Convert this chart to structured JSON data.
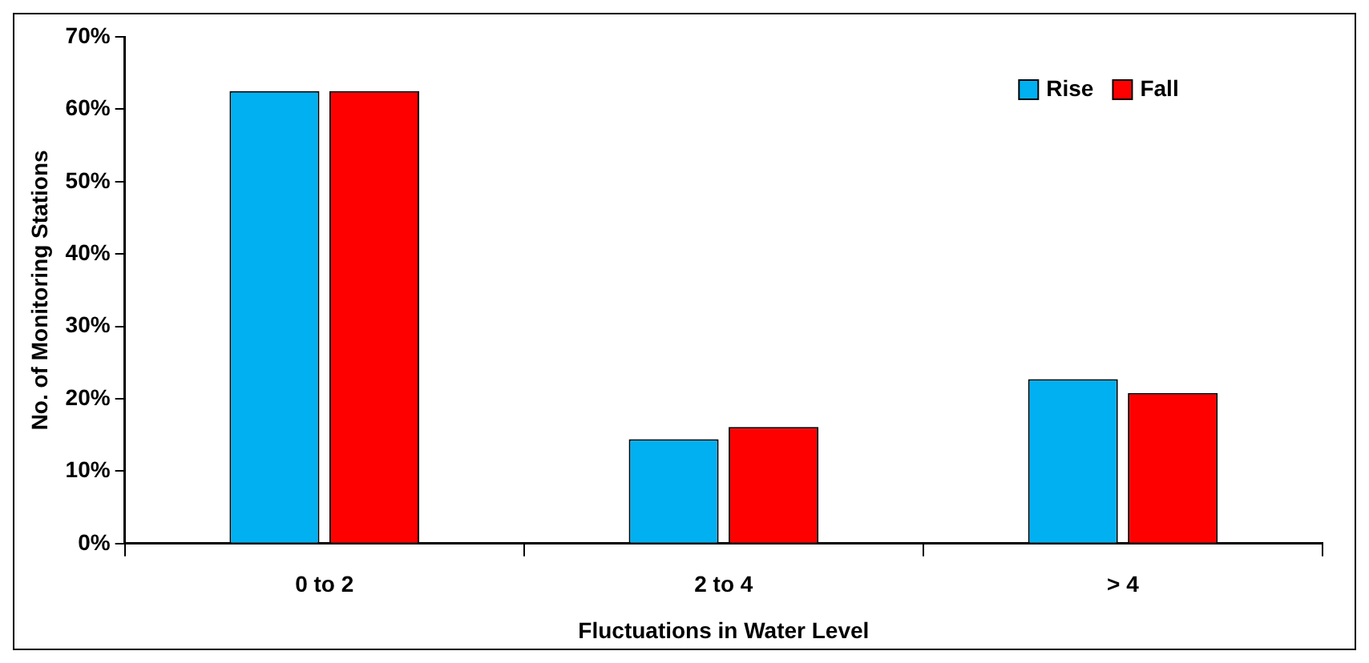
{
  "chart_data": {
    "type": "bar",
    "xlabel": "Fluctuations in Water Level",
    "ylabel": "No. of Monitoring Stations",
    "categories": [
      "0 to 2",
      "2 to 4",
      "> 4"
    ],
    "series": [
      {
        "name": "Rise",
        "color": "#00b0f0",
        "values": [
          62.5,
          14.4,
          22.7
        ]
      },
      {
        "name": "Fall",
        "color": "#ff0000",
        "values": [
          62.5,
          16.1,
          20.8
        ]
      }
    ],
    "ylim": [
      0,
      70
    ],
    "yticks": [
      {
        "value": 0,
        "label": "0%"
      },
      {
        "value": 10,
        "label": "10%"
      },
      {
        "value": 20,
        "label": "20%"
      },
      {
        "value": 30,
        "label": "30%"
      },
      {
        "value": 40,
        "label": "40%"
      },
      {
        "value": 50,
        "label": "50%"
      },
      {
        "value": 60,
        "label": "60%"
      },
      {
        "value": 70,
        "label": "70%"
      }
    ],
    "grid": false,
    "legend": "top right"
  }
}
